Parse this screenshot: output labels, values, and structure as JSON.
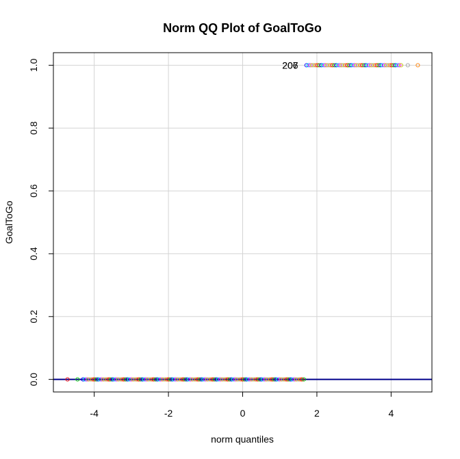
{
  "chart_data": {
    "type": "scatter",
    "title": "Norm QQ Plot of GoalToGo",
    "xlabel": "norm quantiles",
    "ylabel": "GoalToGo",
    "xlim": [
      -5.1,
      5.1
    ],
    "ylim": [
      -0.04,
      1.04
    ],
    "x_ticks": [
      -4,
      -2,
      0,
      2,
      4
    ],
    "y_ticks": [
      0.0,
      0.2,
      0.4,
      0.6,
      0.8,
      1.0
    ],
    "x_tick_labels": [
      "-4",
      "-2",
      "0",
      "2",
      "4"
    ],
    "y_tick_labels": [
      "0.0",
      "0.2",
      "0.4",
      "0.6",
      "0.8",
      "1.0"
    ],
    "grid": true,
    "reference_line": {
      "intercept": 0,
      "slope": 0,
      "color": "#00008b"
    },
    "point_colors": [
      "#ff0000",
      "#00cd00",
      "#0000ff",
      "#00e5ee",
      "#ff00ff",
      "#c8c800",
      "#a0a0a0",
      "#ff7f00"
    ],
    "series": [
      {
        "y": 0,
        "x_min": -4.72,
        "x_max": 1.68,
        "dense_from": -4.3
      },
      {
        "y": 1,
        "x_min": 1.72,
        "x_max": 4.72,
        "dense_to": 4.3
      }
    ],
    "annotations": [
      {
        "text": "207",
        "x": 1.28,
        "y": 1.0
      },
      {
        "text": "206",
        "x": 1.28,
        "y": 1.0
      }
    ]
  }
}
